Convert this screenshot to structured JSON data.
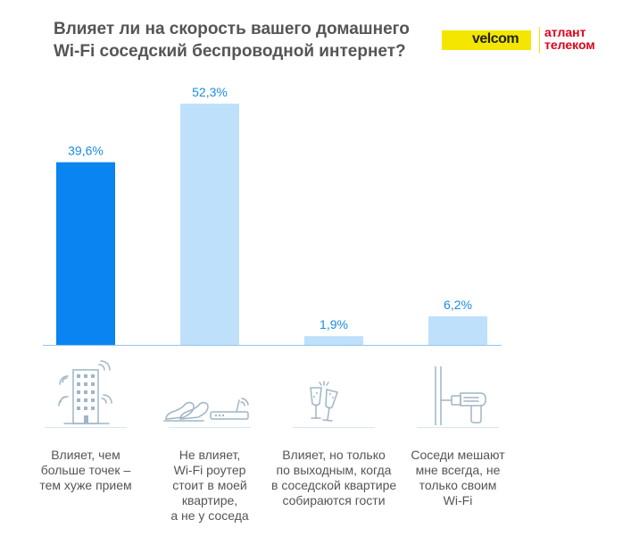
{
  "header": {
    "title_lines": [
      "Влияет ли на скорость вашего домашнего",
      "Wi-Fi соседский беспроводной интернет?"
    ],
    "logo_velcom": "velcom",
    "logo_atlant_lines": [
      "атлант",
      "телеком"
    ]
  },
  "colors": {
    "highlight_bar": "#0a84f0",
    "bar": "#bfe0fb",
    "value_label": "#1a8ce8",
    "axis": "#8fc6f3",
    "icon": "#9fb6c6"
  },
  "icons": [
    "building-wifi-icon",
    "slippers-router-icon",
    "champagne-glasses-icon",
    "wall-drill-icon"
  ],
  "chart_data": {
    "type": "bar",
    "title": "Влияет ли на скорость вашего домашнего Wi-Fi соседский беспроводной интернет?",
    "categories": [
      "Влияет, чем больше точек – тем хуже прием",
      "Не влияет, Wi-Fi роутер стоит в моей квартире, а не у соседа",
      "Влияет, но только по выходным, когда в соседской квартире собираются гости",
      "Соседи мешают мне всегда, не только своим Wi-Fi"
    ],
    "category_lines": [
      [
        "Влияет, чем",
        "больше точек –",
        "тем хуже прием"
      ],
      [
        "Не влияет,",
        "Wi-Fi роутер",
        "стоит в моей",
        "квартире,",
        "а не у соседа"
      ],
      [
        "Влияет, но только",
        "по выходным, когда",
        "в соседской квартире",
        "собираются гости"
      ],
      [
        "Соседи мешают",
        "мне всегда, не",
        "только своим",
        "Wi-Fi"
      ]
    ],
    "values": [
      39.6,
      52.3,
      1.9,
      6.2
    ],
    "value_labels": [
      "39,6%",
      "52,3%",
      "1,9%",
      "6,2%"
    ],
    "highlighted_index": 0,
    "unit": "%",
    "ylim": [
      0,
      52.3
    ],
    "grid": false,
    "legend": "none"
  }
}
